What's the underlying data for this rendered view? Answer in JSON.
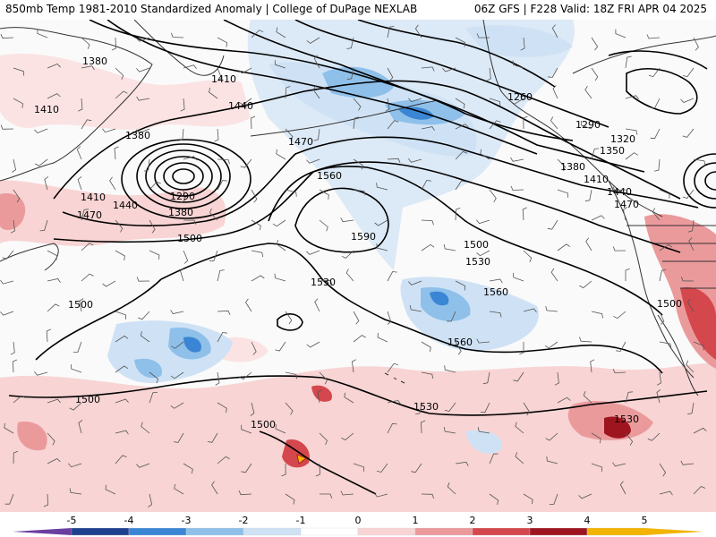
{
  "header": {
    "left_title": "850mb Temp 1981-2010 Standardized Anomaly | College of DuPage NEXLAB",
    "right_title": "06Z GFS | F228 Valid: 18Z FRI APR 04 2025"
  },
  "colorbar": {
    "ticks": [
      "-5",
      "-4",
      "-3",
      "-2",
      "-1",
      "0",
      "1",
      "2",
      "3",
      "4",
      "5"
    ],
    "colors": [
      "#6b3fa0",
      "#1f3f8f",
      "#3a86d4",
      "#8ec0ea",
      "#cfe2f5",
      "#ffffff",
      "#f8d4d4",
      "#eb9a9c",
      "#d4474c",
      "#9e1520",
      "#f2b400"
    ]
  },
  "map": {
    "height_labels": [
      "1380",
      "1410",
      "1410",
      "1440",
      "1380",
      "1470",
      "1410",
      "1290",
      "1440",
      "1380",
      "1470",
      "1500",
      "1560",
      "1590",
      "1260",
      "1290",
      "1320",
      "1350",
      "1380",
      "1410",
      "1440",
      "1470",
      "1500",
      "1530",
      "1530",
      "1560",
      "1560",
      "1500",
      "1500",
      "1500",
      "1530",
      "1530",
      "1500"
    ],
    "contour_color": "#000000",
    "cold_anomaly_colors": [
      "#cfe2f5",
      "#8ec0ea",
      "#3a86d4"
    ],
    "warm_anomaly_colors": [
      "#f8d4d4",
      "#eb9a9c",
      "#d4474c",
      "#9e1520"
    ],
    "coastline_color": "#333333",
    "wind_barb_color": "#555555"
  }
}
